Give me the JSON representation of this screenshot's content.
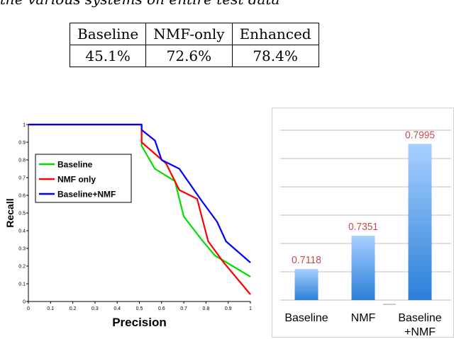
{
  "caption": "the various systems on entire test data",
  "results_table": {
    "headers": [
      "Baseline",
      "NMF-only",
      "Enhanced"
    ],
    "values": [
      "45.1%",
      "72.6%",
      "78.4%"
    ]
  },
  "chart_data": [
    {
      "type": "line",
      "xlabel": "Precision",
      "ylabel": "Recall",
      "xlim": [
        0,
        1
      ],
      "ylim": [
        0,
        1
      ],
      "x_ticks": [
        "0",
        "0.1",
        "0.2",
        "0.3",
        "0.4",
        "0.5",
        "0.6",
        "0.7",
        "0.8",
        "0.9",
        "1"
      ],
      "y_ticks": [
        "0",
        "0.1",
        "0.2",
        "0.3",
        "0.4",
        "0.5",
        "0.6",
        "0.7",
        "0.8",
        "0.9",
        "1"
      ],
      "legend": "top-left",
      "series": [
        {
          "name": "Baseline",
          "color": "#00dd00",
          "points": [
            [
              0,
              1
            ],
            [
              0.51,
              1
            ],
            [
              0.51,
              0.88
            ],
            [
              0.57,
              0.75
            ],
            [
              0.66,
              0.68
            ],
            [
              0.7,
              0.48
            ],
            [
              0.78,
              0.35
            ],
            [
              0.84,
              0.26
            ],
            [
              0.92,
              0.2
            ],
            [
              1,
              0.14
            ]
          ]
        },
        {
          "name": "NMF only",
          "color": "#ff0000",
          "points": [
            [
              0,
              1
            ],
            [
              0.51,
              1
            ],
            [
              0.51,
              0.9
            ],
            [
              0.62,
              0.78
            ],
            [
              0.68,
              0.63
            ],
            [
              0.76,
              0.58
            ],
            [
              0.81,
              0.34
            ],
            [
              0.88,
              0.22
            ],
            [
              1,
              0.04
            ]
          ]
        },
        {
          "name": "Baseline+NMF",
          "color": "#0000ff",
          "points": [
            [
              0,
              1
            ],
            [
              0.51,
              1
            ],
            [
              0.51,
              0.97
            ],
            [
              0.57,
              0.91
            ],
            [
              0.6,
              0.8
            ],
            [
              0.68,
              0.75
            ],
            [
              0.78,
              0.57
            ],
            [
              0.85,
              0.45
            ],
            [
              0.89,
              0.34
            ],
            [
              1,
              0.22
            ]
          ]
        }
      ]
    },
    {
      "type": "bar",
      "categories": [
        "Baseline",
        "NMF",
        "Baseline +NMF"
      ],
      "category_lines": [
        [
          "Baseline"
        ],
        [
          "NMF"
        ],
        [
          "Baseline",
          "+NMF"
        ]
      ],
      "values": [
        0.7118,
        0.7351,
        0.7995
      ],
      "value_labels": [
        "0.7118",
        "0.7351",
        "0.7995"
      ],
      "ylim": [
        0.69,
        0.82
      ],
      "label_color": "#c0504d"
    }
  ]
}
